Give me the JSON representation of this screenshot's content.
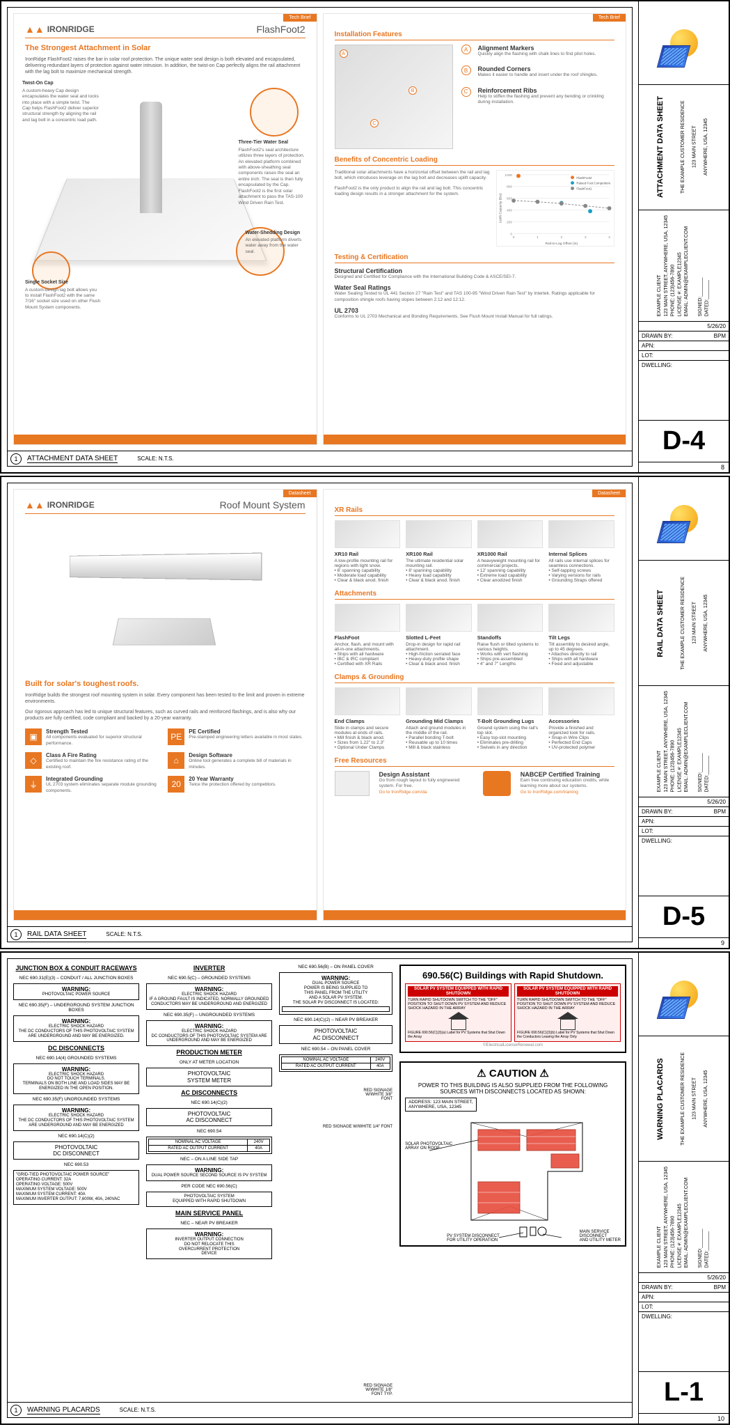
{
  "titleblock": {
    "date": "5/26/20",
    "drawn_by_label": "DRAWN BY:",
    "drawn_by": "BPM",
    "apn_label": "APN:",
    "lot_label": "LOT:",
    "dwelling_label": "DWELLING:",
    "signed_label": "SIGNED:",
    "dated_label": "DATED:",
    "client": "EXAMPLE CLIENT\n123 MAIN STREET, ANYWHERE, USA, 12345\nPHONE: (123)456-7890\nLICENSE #: EXAMPLE12345\nEMAIL: ADMIN@EXAMPLECLIENT.COM",
    "project": "THE EXAMPLE CUSTOMER RESIDENCE\n123 MAIN STREET\nANYWHERE, USA, 12345"
  },
  "sheets": {
    "d4": {
      "title": "ATTACHMENT DATA SHEET",
      "code": "D-4",
      "page": "8",
      "scale": "N.T.S."
    },
    "d5": {
      "title": "RAIL DATA SHEET",
      "code": "D-5",
      "page": "9",
      "scale": "N.T.S."
    },
    "l1": {
      "title": "WARNING PLACARDS",
      "code": "L-1",
      "page": "10",
      "scale": "N.T.S."
    }
  },
  "d4": {
    "brand": "IRONRIDGE",
    "product": "FlashFoot2",
    "tab": "Tech Brief",
    "subtitle": "The Strongest Attachment in Solar",
    "intro": "IronRidge FlashFoot2 raises the bar in solar roof protection. The unique water seal design is both elevated and encapsulated, delivering redundant layers of protection against water intrusion. In addition, the twist-on Cap perfectly aligns the rail attachment with the lag bolt to maximize mechanical strength.",
    "callouts": {
      "c1_t": "Twist-On Cap",
      "c1_b": "A custom-heavy Cap design encapsulates the water seal and locks into place with a simple twist. The Cap helps FlashFoot2 deliver superior structural strength by aligning the rail and lag bolt in a concentric load path.",
      "c2_t": "Three-Tier Water Seal",
      "c2_b": "FlashFoot2's seal architecture utilizes three layers of protection. An elevated platform combined with above-sheathing seal components raises the seal an entire inch. The seal is then fully encapsulated by the Cap. FlashFoot2 is the first solar attachment to pass the TAS-100 Wind Driven Rain Test.",
      "c3_t": "Single Socket Size",
      "c3_b": "A custom-design lag bolt allows you to install FlashFoot2 with the same 7/16\" socket size used on other Flush Mount System components.",
      "c4_t": "Water-Shedding Design",
      "c4_b": "An elevated platform diverts water away from the water seal."
    },
    "right": {
      "h1": "Installation Features",
      "feat_a_t": "Alignment Markers",
      "feat_a_b": "Quickly align the flashing with chalk lines to find pilot holes.",
      "feat_b_t": "Rounded Corners",
      "feat_b_b": "Makes it easier to handle and insert under the roof shingles.",
      "feat_c_t": "Reinforcement Ribs",
      "feat_c_b": "Help to stiffen the flashing and prevent any bending or crinkling during installation.",
      "h2": "Benefits of Concentric Loading",
      "bc1": "Traditional solar attachments have a horizontal offset between the rail and lag bolt, which introduces leverage on the lag bolt and decreases uplift capacity.",
      "bc2": "FlashFoot2 is the only product to align the rail and lag bolt. This concentric loading design results in a stronger attachment for the system.",
      "chart": {
        "ylabel": "Uplift Capacity (lbs)",
        "xlabel": "Rail-to-Lag Offset (in)",
        "y_ticks": [
          0,
          200,
          400,
          600,
          800,
          1000
        ],
        "x_ticks": [
          0,
          1,
          2,
          3,
          4
        ],
        "series": [
          {
            "label": "FlashFoot2",
            "color": "#e87722",
            "type": "point",
            "points": [
              [
                0.2,
                980
              ]
            ]
          },
          {
            "label": "Raised Foot Competitors",
            "color": "#16a0c4",
            "type": "point",
            "points": [
              [
                2.0,
                520
              ],
              [
                3.2,
                380
              ]
            ]
          },
          {
            "label": "FlashFoot1",
            "color": "#888",
            "type": "line",
            "points": [
              [
                0,
                560
              ],
              [
                1,
                540
              ],
              [
                2,
                510
              ],
              [
                3,
                470
              ],
              [
                4,
                430
              ]
            ]
          }
        ]
      },
      "h3": "Testing & Certification",
      "sc_t": "Structural Certification",
      "sc_b": "Designed and Certified for Compliance with the International Building Code & ASCE/SEI-7.",
      "ws_t": "Water Seal Ratings",
      "ws_b": "Water Sealing Tested to UL 441 Section 27 \"Rain Test\" and TAS 100-95 \"Wind Driven Rain Test\" by Intertek. Ratings applicable for composition shingle roofs having slopes between 2:12 and 12:12.",
      "ul_t": "UL 2703",
      "ul_b": "Conforms to UL 2703 Mechanical and Bonding Requirements. See Flush Mount Install Manual for full ratings."
    }
  },
  "d5": {
    "brand": "IRONRIDGE",
    "product": "Roof Mount System",
    "tab_l": "Datasheet",
    "tab_r": "Datasheet",
    "subtitle": "Built for solar's toughest roofs.",
    "p1": "IronRidge builds the strongest roof mounting system in solar. Every component has been tested to the limit and proven in extreme environments.",
    "p2": "Our rigorous approach has led to unique structural features, such as curved rails and reinforced flashings, and is also why our products are fully certified, code compliant and backed by a 20-year warranty.",
    "features": [
      {
        "icon": "▣",
        "t": "Strength Tested",
        "b": "All components evaluated for superior structural performance."
      },
      {
        "icon": "PE",
        "t": "PE Certified",
        "b": "Pre-stamped engineering letters available in most states."
      },
      {
        "icon": "◇",
        "t": "Class A Fire Rating",
        "b": "Certified to maintain the fire resistance rating of the existing roof."
      },
      {
        "icon": "⌂",
        "t": "Design Software",
        "b": "Online tool generates a complete bill of materials in minutes."
      },
      {
        "icon": "⏚",
        "t": "Integrated Grounding",
        "b": "UL 2703 system eliminates separate module grounding components."
      },
      {
        "icon": "20",
        "t": "20 Year Warranty",
        "b": "Twice the protection offered by competitors."
      }
    ],
    "right": {
      "h_rails": "XR Rails",
      "rails": [
        {
          "name": "XR10 Rail",
          "desc": "A low-profile mounting rail for regions with light snow.",
          "bullets": [
            "6' spanning capability",
            "Moderate load capability",
            "Clear & black anod. finish"
          ]
        },
        {
          "name": "XR100 Rail",
          "desc": "The ultimate residential solar mounting rail.",
          "bullets": [
            "8' spanning capability",
            "Heavy load capability",
            "Clear & black anod. finish"
          ]
        },
        {
          "name": "XR1000 Rail",
          "desc": "A heavyweight mounting rail for commercial projects.",
          "bullets": [
            "12' spanning capability",
            "Extreme load capability",
            "Clear anodized finish"
          ]
        },
        {
          "name": "Internal Splices",
          "desc": "All rails use internal splices for seamless connections.",
          "bullets": [
            "Self-tapping screws",
            "Varying versions for rails",
            "Grounding Straps offered"
          ]
        }
      ],
      "h_att": "Attachments",
      "attachments": [
        {
          "name": "FlashFoot",
          "desc": "Anchor, flash, and mount with all-in-one attachments.",
          "bullets": [
            "Ships with all hardware",
            "IBC & IRC compliant",
            "Certified with XR Rails"
          ]
        },
        {
          "name": "Slotted L-Feet",
          "desc": "Drop-in design for rapid rail attachment.",
          "bullets": [
            "High-friction serrated face",
            "Heavy-duty profile shape",
            "Clear & black anod. finish"
          ]
        },
        {
          "name": "Standoffs",
          "desc": "Raise flush or tilted systems to various heights.",
          "bullets": [
            "Works with vert flashing",
            "Ships pre-assembled",
            "4\" and 7\" Lengths"
          ]
        },
        {
          "name": "Tilt Legs",
          "desc": "Tilt assembly to desired angle, up to 45 degrees.",
          "bullets": [
            "Attaches directly to rail",
            "Ships with all hardware",
            "Fixed and adjustable"
          ]
        }
      ],
      "h_clamps": "Clamps & Grounding",
      "clamps": [
        {
          "name": "End Clamps",
          "desc": "Slide in clamps and secure modules at ends of rails.",
          "bullets": [
            "Mill finish & black anod.",
            "Sizes from 1.22\" to 2.3\"",
            "Optional Under Clamps"
          ]
        },
        {
          "name": "Grounding Mid Clamps",
          "desc": "Attach and ground modules in the middle of the rail.",
          "bullets": [
            "Parallel bonding T-bolt",
            "Reusable up to 10 times",
            "Mill & black stainless"
          ]
        },
        {
          "name": "T-Bolt Grounding Lugs",
          "desc": "Ground system using the rail's top slot.",
          "bullets": [
            "Easy top-slot mounting",
            "Eliminates pre-drilling",
            "Swivels in any direction"
          ]
        },
        {
          "name": "Accessories",
          "desc": "Provide a finished and organized look for rails.",
          "bullets": [
            "Snap-in Wire Clips",
            "Perfected End Caps",
            "UV-protected polymer"
          ]
        }
      ],
      "h_res": "Free Resources",
      "res1_t": "Design Assistant",
      "res1_b": "Go from rough layout to fully engineered system. For free.",
      "res1_l": "Go to IronRidge.com/da",
      "res2_t": "NABCEP Certified Training",
      "res2_b": "Earn free continuing education credits, while learning more about our systems.",
      "res2_l": "Go to IronRidge.com/training"
    }
  },
  "l1": {
    "col1_h": "JUNCTION BOX & CONDUIT RACEWAYS",
    "c1_code1": "NEC 690.31(E)(3) – CONDUIT / ALL JUNCTION BOXES",
    "c1_p1": "PHOTOVOLTAIC POWER SOURCE",
    "c1_code2": "NEC 690.35(F) – UNDERGROUND SYSTEM JUNCTION BOXES",
    "c1_p2": "ELECTRIC SHOCK HAZARD\nTHE DC CONDUCTORS OF THIS PHOTOVOLTAIC SYSTEM ARE UNDERGROUND AND MAY BE ENERGIZED.",
    "dcd_h": "DC DISCONNECTS",
    "dcd_code1": "NEC 690.14(4) GROUNDED SYSTEMS",
    "dcd_p1": "ELECTRIC SHOCK HAZARD\nDO NOT TOUCH TERMINALS.\nTERMINALS ON BOTH LINE AND LOAD SIDES MAY BE ENERGIZED IN THE OPEN POSITION.",
    "dcd_code2": "NEC 690.35(F) UNGROUNDED SYSTEMS",
    "dcd_p2": "ELECTRIC SHOCK HAZARD\nTHE DC CONDUCTORS OF THIS PHOTOVOLTAIC SYSTEM ARE UNDERGROUND AND MAY BE ENERGIZED",
    "dcd_code3": "NEC 690.14(C)(2)",
    "dcd_p3": "PHOTOVOLTAIC\nDC DISCONNECT",
    "dcd_code4": "NEC 690.53",
    "grid_tie": "\"GRID-TIED PHOTOVOLTAIC POWER SOURCE\"\nOPERATING CURRENT: 32A\nOPERATING VOLTAGE: 500V\nMAXIMUM SYSTEM VOLTAGE: 500V\nMAXIMUM SYSTEM CURRENT: 40A\nMAXIMUM INVERTER OUTPUT: 7,600W, 40A, 240VAC",
    "col2_h": "INVERTER",
    "c2_code1": "NEC 690.5(C) – GROUNDED SYSTEMS",
    "c2_p1": "ELECTRIC SHOCK HAZARD\nIF A GROUND FAULT IS INDICATED, NORMALLY GROUNDED CONDUCTORS MAY BE UNDERGROUND AND ENERGIZED",
    "c2_code2": "NEC 690.35(F) – UNGROUNDED SYSTEMS",
    "c2_p2": "ELECTRIC SHOCK HAZARD\nDC CONDUCTORS OF THIS PHOTOVOLTAIC SYSTEM ARE UNDERGROUND AND MAY BE ENERGIZED",
    "pm_h": "PRODUCTION METER",
    "pm_sub": "ONLY AT METER LOCATION",
    "pm_p": "PHOTOVOLTAIC\nSYSTEM METER",
    "ac_h": "AC DISCONNECTS",
    "ac_code1": "NEC 690.14(C)(2)",
    "ac_p1": "PHOTOVOLTAIC\nAC DISCONNECT",
    "ac_code2": "NEC 690.54",
    "ac_tbl_r1l": "NOMINAL AC VOLTAGE",
    "ac_tbl_r1v": "240V",
    "ac_tbl_r2l": "RATED AC OUTPUT CURRENT",
    "ac_tbl_r2v": "40A",
    "ac_code3": "NEC – ON A LINE SIDE TAP",
    "ac_p3": "DUAL POWER SOURCE SECOND SOURCE IS PV SYSTEM",
    "ac_code4": "PER CODE NEC 690.56(C)",
    "ac_p4": "PHOTOVOLTAIC SYSTEM\nEQUIPPED WITH RAPID SHUTDOWN",
    "msp_h": "MAIN SERVICE PANEL",
    "msp_sub": "NEC – NEAR PV BREAKER",
    "msp_p": "INVERTER OUTPUT CONNECTION\nDO NOT RELOCATE THIS\nOVERCURRENT PROTECTION\nDEVICE",
    "col3_code1": "NEC 690.56(B) – ON PANEL COVER",
    "col3_p1": "DUAL POWER SOURCE\nPOWER IS BEING SUPPLIED TO\nTHIS PANEL FROM THE UTILITY\nAND A SOLAR PV SYSTEM.\nTHE SOLAR PV DISCONNECT IS LOCATED:",
    "col3_code2": "NEC 690.14(C)(2) – NEAR PV BREAKER",
    "col3_p2": "PHOTOVOLTAIC\nAC DISCONNECT",
    "col3_code3": "NEC 690.54 – ON PANEL COVER",
    "rapid_h": "690.56(C) Buildings with Rapid Shutdown.",
    "rs_bar1": "SOLAR PV SYSTEM EQUIPPED WITH RAPID SHUTDOWN",
    "rs_txt1": "TURN RAPID SHUTDOWN SWITCH TO THE \"OFF\" POSITION TO SHUT DOWN PV SYSTEM AND REDUCE SHOCK HAZARD IN THE ARRAY",
    "rs_foot1": "FIGURE 690.56(C)(3)(a) Label for PV Systems that Shut Down the Array",
    "rs_foot2": "FIGURE 690.56(C)(3)(b) Label for PV Systems that Shut Down the Conductors Leaving the Array Only",
    "rs_credit": "©ElectricalLicenseRenewal.com",
    "caution": "CAUTION",
    "caution_sub": "POWER TO THIS BUILDING IS ALSO SUPPLIED FROM THE FOLLOWING SOURCES WITH DISCONNECTS LOCATED AS SHOWN:",
    "address": "ADDRESS: 123 MAIN STREET,\nANYWHERE, USA, 12345",
    "leader1": "SOLAR PHOTOVOLTAIC\nARRAY ON ROOF",
    "leader2": "MAIN SERVICE\nDISCONNECT\nAND UTILITY METER",
    "leader3": "PV SYSTEM DISCONNECT\nFOR UTILITY OPERATION",
    "sig_red": "RED SIGNAGE\nW/WHITE 3/8\"\nFONT",
    "sig_red2": "RED SIGNAGE W/WHITE 1/4\" FONT",
    "sig_red3": "RED SIGNAGE\nW/WHITE 1/8\"\nFONT TYP.",
    "warning": "WARNING:"
  }
}
